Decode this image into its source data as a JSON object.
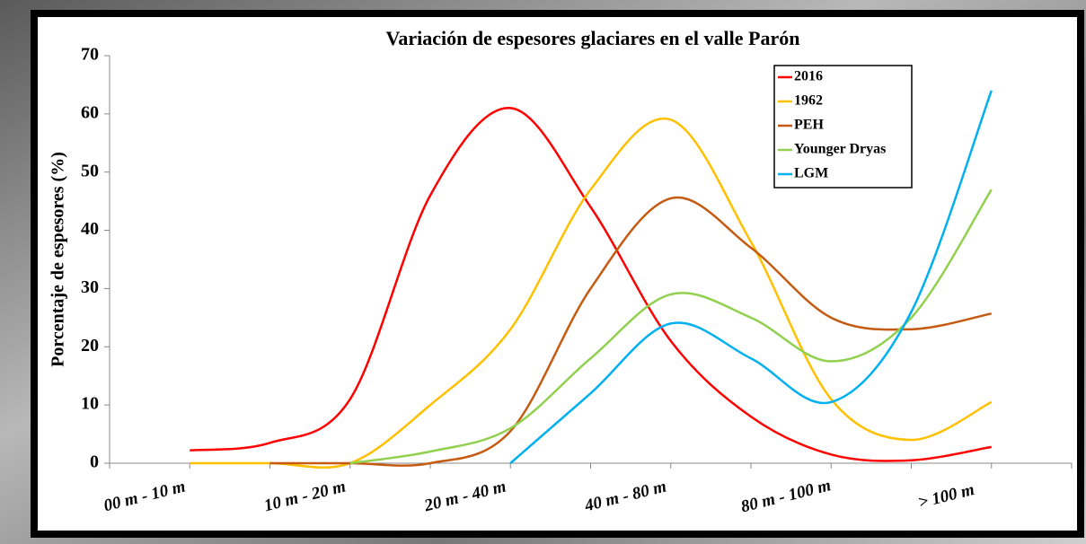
{
  "chart_data": {
    "type": "line",
    "title": "Variación de espesores glaciares en el valle Parón",
    "y_label": "Porcentaje de espesores (%)",
    "categories": [
      "00 m - 10 m",
      null,
      "10 m - 20 m",
      null,
      "20 m - 40 m",
      null,
      "40 m - 80 m",
      null,
      "80 m - 100 m",
      null,
      "> 100 m"
    ],
    "ylim": [
      0,
      70
    ],
    "yticks": [
      0,
      10,
      20,
      30,
      40,
      50,
      60,
      70
    ],
    "smooth": true,
    "series": [
      {
        "name": "2016",
        "color": "#ff0000",
        "values": [
          2.2,
          3.5,
          11,
          46,
          61,
          44,
          21,
          8,
          1.5,
          0.5,
          2.8
        ]
      },
      {
        "name": "1962",
        "color": "#ffc000",
        "values": [
          0,
          0,
          0,
          10,
          23,
          47,
          59,
          38,
          11,
          4,
          10.5
        ]
      },
      {
        "name": "PEH",
        "color": "#c55a11",
        "values": [
          null,
          0,
          0,
          0,
          5.5,
          30,
          45.5,
          37,
          25,
          23,
          25.7
        ]
      },
      {
        "name": "Younger Dryas",
        "color": "#92d050",
        "values": [
          null,
          null,
          0,
          2,
          6,
          18,
          29,
          25,
          17.5,
          25,
          47
        ]
      },
      {
        "name": "LGM",
        "color": "#00b0f0",
        "values": [
          null,
          null,
          null,
          null,
          0,
          12,
          24,
          18,
          10.5,
          26,
          64
        ]
      }
    ]
  }
}
